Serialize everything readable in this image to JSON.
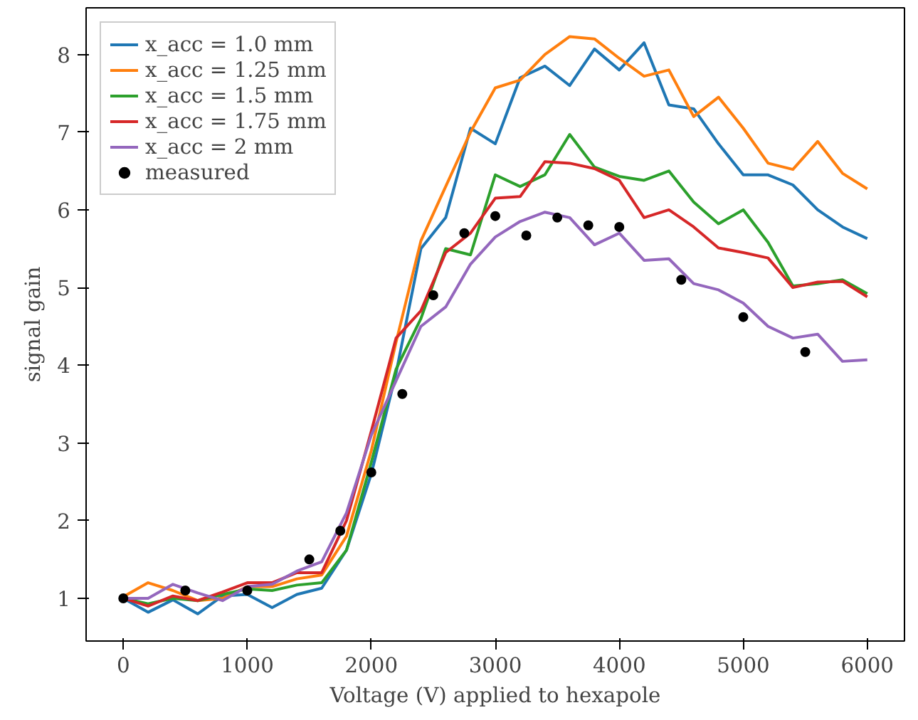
{
  "chart_data": {
    "type": "line",
    "xlabel": "Voltage (V) applied to hexapole",
    "ylabel": "signal gain",
    "x": [
      0,
      200,
      400,
      600,
      800,
      1000,
      1200,
      1400,
      1600,
      1800,
      2000,
      2200,
      2400,
      2600,
      2800,
      3000,
      3200,
      3400,
      3600,
      3800,
      4000,
      4200,
      4400,
      4600,
      4800,
      5000,
      5200,
      5400,
      5600,
      5800,
      6000
    ],
    "series": [
      {
        "name": "x_acc = 1.0 mm",
        "color": "#1f77b4",
        "values": [
          1.0,
          0.82,
          0.98,
          0.8,
          1.03,
          1.05,
          0.88,
          1.05,
          1.13,
          1.62,
          2.6,
          3.9,
          5.5,
          5.9,
          7.05,
          6.85,
          7.7,
          7.85,
          7.6,
          8.07,
          7.8,
          8.15,
          7.35,
          7.3,
          6.85,
          6.45,
          6.45,
          6.32,
          6.0,
          5.78,
          5.63
        ]
      },
      {
        "name": "x_acc = 1.25 mm",
        "color": "#ff7f0e",
        "values": [
          1.02,
          1.2,
          1.1,
          0.97,
          1.0,
          1.15,
          1.15,
          1.25,
          1.3,
          1.8,
          2.9,
          4.3,
          5.6,
          6.3,
          7.0,
          7.57,
          7.67,
          8.0,
          8.23,
          8.2,
          7.95,
          7.72,
          7.8,
          7.2,
          7.45,
          7.05,
          6.6,
          6.52,
          6.88,
          6.47,
          6.27
        ]
      },
      {
        "name": "x_acc = 1.5 mm",
        "color": "#2ca02c",
        "values": [
          1.0,
          0.93,
          1.0,
          0.97,
          1.05,
          1.12,
          1.1,
          1.17,
          1.2,
          1.62,
          2.75,
          3.95,
          4.6,
          5.5,
          5.42,
          6.45,
          6.3,
          6.45,
          6.97,
          6.55,
          6.43,
          6.38,
          6.5,
          6.1,
          5.82,
          6.0,
          5.58,
          5.02,
          5.05,
          5.1,
          4.92
        ]
      },
      {
        "name": "x_acc = 1.75 mm",
        "color": "#d62728",
        "values": [
          1.0,
          0.9,
          1.03,
          0.97,
          1.08,
          1.2,
          1.2,
          1.33,
          1.33,
          2.0,
          3.15,
          4.35,
          4.7,
          5.45,
          5.7,
          6.15,
          6.17,
          6.62,
          6.6,
          6.53,
          6.38,
          5.9,
          6.0,
          5.78,
          5.51,
          5.45,
          5.38,
          5.0,
          5.07,
          5.08,
          4.88
        ]
      },
      {
        "name": "x_acc = 2 mm",
        "color": "#9467bd",
        "values": [
          1.0,
          1.0,
          1.18,
          1.07,
          0.97,
          1.15,
          1.18,
          1.35,
          1.47,
          2.1,
          3.1,
          3.8,
          4.5,
          4.75,
          5.3,
          5.65,
          5.85,
          5.97,
          5.9,
          5.55,
          5.7,
          5.35,
          5.37,
          5.05,
          4.97,
          4.8,
          4.5,
          4.35,
          4.4,
          4.05,
          4.07
        ]
      },
      {
        "name": "measured",
        "type": "scatter",
        "marker": "circle",
        "color": "#000000",
        "x": [
          0,
          500,
          1000,
          1500,
          1750,
          2000,
          2250,
          2500,
          2750,
          3000,
          3250,
          3500,
          3750,
          4000,
          4500,
          5000,
          5500
        ],
        "values": [
          1.0,
          1.1,
          1.1,
          1.5,
          1.87,
          2.62,
          3.63,
          4.9,
          5.7,
          5.92,
          5.67,
          5.9,
          5.8,
          5.78,
          5.1,
          4.62,
          4.17
        ]
      }
    ],
    "xlim": [
      -300,
      6300
    ],
    "xticks": [
      0,
      1000,
      2000,
      3000,
      4000,
      5000,
      6000
    ],
    "ylim": [
      0.45,
      8.6
    ],
    "yticks": [
      1,
      2,
      3,
      4,
      5,
      6,
      7,
      8
    ],
    "grid": false,
    "legend": "top left",
    "line_style": "solid"
  }
}
